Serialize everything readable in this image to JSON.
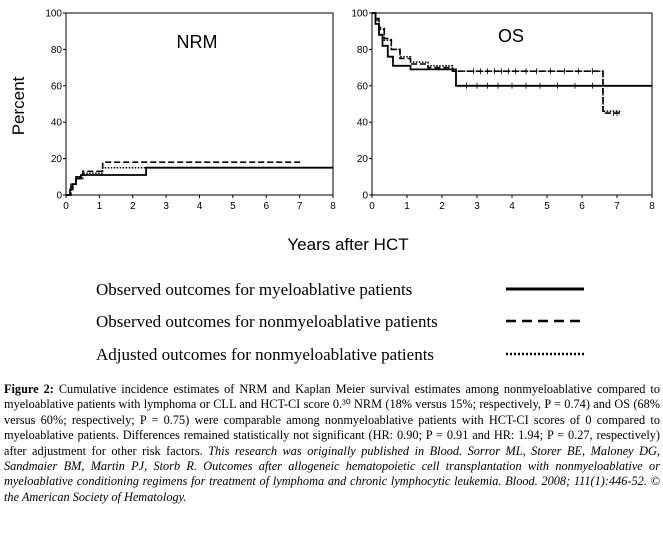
{
  "chart_data": [
    {
      "type": "line",
      "title": "NRM",
      "xlabel": "Years after HCT",
      "ylabel": "Percent",
      "xlim": [
        0,
        8
      ],
      "ylim": [
        0,
        100
      ],
      "xticks": [
        "0",
        "1",
        "2",
        "3",
        "4",
        "5",
        "6",
        "7",
        "8"
      ],
      "yticks": [
        "0",
        "20",
        "40",
        "60",
        "80",
        "100"
      ],
      "series": [
        {
          "style": "solid",
          "points": [
            [
              0,
              0
            ],
            [
              0.12,
              0
            ],
            [
              0.12,
              3
            ],
            [
              0.2,
              3
            ],
            [
              0.2,
              6
            ],
            [
              0.3,
              6
            ],
            [
              0.3,
              9
            ],
            [
              0.45,
              9
            ],
            [
              0.45,
              11
            ],
            [
              2.4,
              11
            ],
            [
              2.4,
              15
            ],
            [
              8,
              15
            ]
          ]
        },
        {
          "style": "dashed",
          "points": [
            [
              0,
              0
            ],
            [
              0.15,
              0
            ],
            [
              0.15,
              6
            ],
            [
              0.3,
              6
            ],
            [
              0.3,
              10
            ],
            [
              0.5,
              10
            ],
            [
              0.5,
              13
            ],
            [
              1.1,
              13
            ],
            [
              1.1,
              18
            ],
            [
              7.1,
              18
            ]
          ]
        },
        {
          "style": "dotted",
          "points": [
            [
              0,
              0
            ],
            [
              0.15,
              0
            ],
            [
              0.15,
              6
            ],
            [
              0.3,
              6
            ],
            [
              0.3,
              9
            ],
            [
              0.5,
              9
            ],
            [
              0.5,
              12
            ],
            [
              1.1,
              12
            ],
            [
              1.1,
              15
            ],
            [
              7.1,
              15
            ]
          ]
        }
      ]
    },
    {
      "type": "line",
      "title": "OS",
      "xlim": [
        0,
        8
      ],
      "ylim": [
        0,
        100
      ],
      "xticks": [
        "0",
        "1",
        "2",
        "3",
        "4",
        "5",
        "6",
        "7",
        "8"
      ],
      "yticks": [
        "0",
        "20",
        "40",
        "60",
        "80",
        "100"
      ],
      "series": [
        {
          "style": "solid",
          "points": [
            [
              0,
              100
            ],
            [
              0.1,
              100
            ],
            [
              0.1,
              94
            ],
            [
              0.2,
              94
            ],
            [
              0.2,
              88
            ],
            [
              0.3,
              88
            ],
            [
              0.3,
              82
            ],
            [
              0.45,
              82
            ],
            [
              0.45,
              76
            ],
            [
              0.6,
              76
            ],
            [
              0.6,
              71
            ],
            [
              1.1,
              71
            ],
            [
              1.1,
              69
            ],
            [
              2.4,
              69
            ],
            [
              2.4,
              60
            ],
            [
              8,
              60
            ]
          ]
        },
        {
          "style": "dashed",
          "points": [
            [
              0,
              100
            ],
            [
              0.1,
              100
            ],
            [
              0.1,
              97
            ],
            [
              0.2,
              97
            ],
            [
              0.2,
              92
            ],
            [
              0.35,
              92
            ],
            [
              0.35,
              86
            ],
            [
              0.55,
              86
            ],
            [
              0.55,
              80
            ],
            [
              0.8,
              80
            ],
            [
              0.8,
              75
            ],
            [
              1.1,
              75
            ],
            [
              1.1,
              72
            ],
            [
              1.6,
              72
            ],
            [
              1.6,
              70
            ],
            [
              2.3,
              70
            ],
            [
              2.3,
              68
            ],
            [
              6.6,
              68
            ],
            [
              6.6,
              45
            ],
            [
              7.1,
              45
            ]
          ]
        },
        {
          "style": "dotted",
          "points": [
            [
              0,
              100
            ],
            [
              0.1,
              100
            ],
            [
              0.1,
              96
            ],
            [
              0.2,
              96
            ],
            [
              0.2,
              91
            ],
            [
              0.35,
              91
            ],
            [
              0.35,
              85
            ],
            [
              0.55,
              85
            ],
            [
              0.55,
              80
            ],
            [
              0.8,
              80
            ],
            [
              0.8,
              76
            ],
            [
              1.1,
              76
            ],
            [
              1.1,
              73
            ],
            [
              1.6,
              73
            ],
            [
              1.6,
              71
            ],
            [
              2.3,
              71
            ],
            [
              2.3,
              68
            ],
            [
              6.6,
              68
            ],
            [
              6.6,
              46
            ],
            [
              7.1,
              46
            ]
          ]
        }
      ],
      "censor_marks": [
        [
          2.9,
          68
        ],
        [
          3.1,
          68
        ],
        [
          3.3,
          68
        ],
        [
          3.5,
          68
        ],
        [
          3.7,
          68
        ],
        [
          3.9,
          68
        ],
        [
          4.1,
          68
        ],
        [
          4.4,
          68
        ],
        [
          4.7,
          68
        ],
        [
          5.1,
          68
        ],
        [
          5.5,
          68
        ],
        [
          5.9,
          68
        ],
        [
          6.3,
          68
        ],
        [
          2.7,
          60
        ],
        [
          3.0,
          60
        ],
        [
          3.3,
          60
        ],
        [
          3.6,
          60
        ],
        [
          4.0,
          60
        ],
        [
          4.4,
          60
        ],
        [
          4.8,
          60
        ],
        [
          5.3,
          60
        ],
        [
          5.8,
          60
        ],
        [
          6.3,
          60
        ],
        [
          6.9,
          45
        ],
        [
          7.0,
          45
        ]
      ]
    }
  ],
  "legend": [
    {
      "label": "Observed outcomes for myeloablative patients",
      "style": "solid"
    },
    {
      "label": "Observed outcomes for nonmyeloablative patients",
      "style": "dashed"
    },
    {
      "label": "Adjusted outcomes for nonmyeloablative patients",
      "style": "dotted"
    }
  ],
  "caption": {
    "label": "Figure 2:",
    "body": " Cumulative incidence estimates of NRM and Kaplan Meier survival estimates among nonmyeloablative compared to myeloablative patients with lymphoma or CLL and HCT-CI score 0.³⁰ NRM (18% versus 15%; respectively, P = 0.74) and OS (68% versus 60%; respectively; P = 0.75) were comparable among nonmyeloablative patients with HCT-CI scores of 0 compared to myeloablative patients. Differences remained statistically not significant (HR: 0.90; P = 0.91 and HR: 1.94; P = 0.27, respectively) after adjustment for other risk factors. ",
    "citation": "This research was originally published in Blood. Sorror ML, Storer BE, Maloney DG, Sandmaier BM, Martin PJ, Storb R. Outcomes after allogeneic hematopoietic cell transplantation with nonmyeloablative or myeloablative conditioning regimens for treatment of lymphoma and chronic lymphocytic leukemia. Blood. 2008; 111(1):446-52.  © the American Society of Hematology."
  }
}
